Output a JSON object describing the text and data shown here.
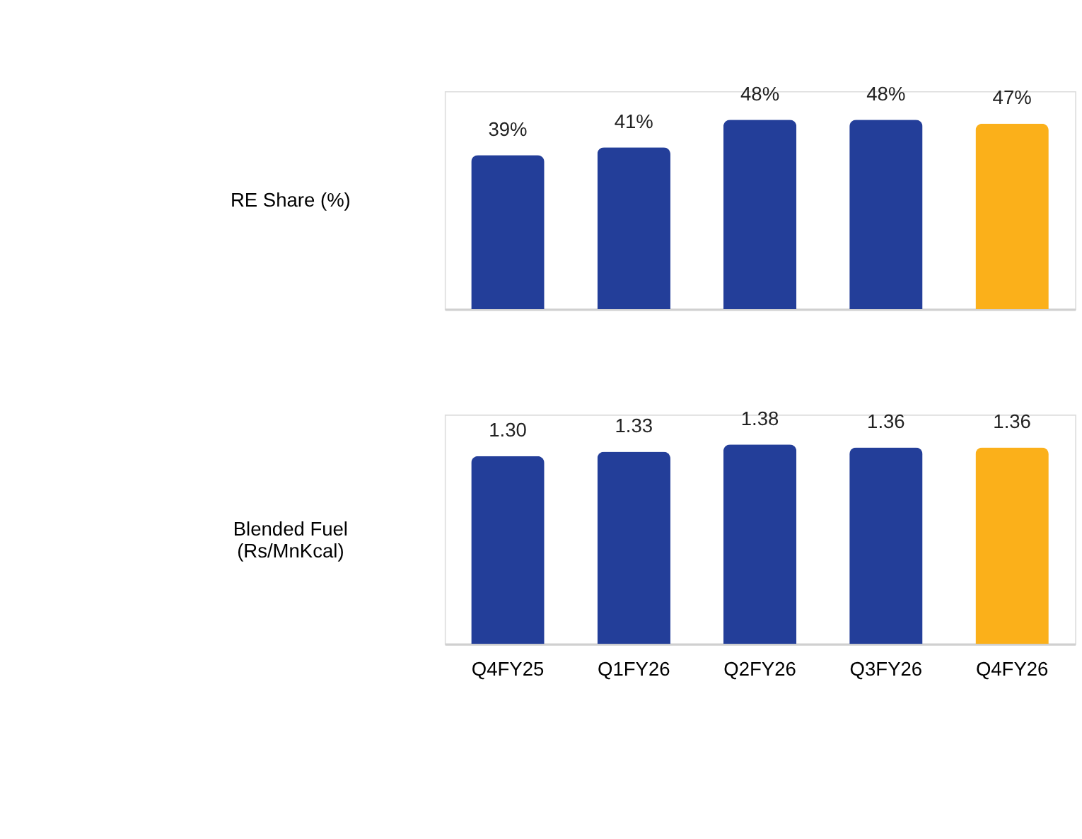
{
  "chart_data": [
    {
      "type": "bar",
      "ylabel": "RE Share (%)",
      "values": [
        39,
        41,
        48,
        48,
        47
      ],
      "value_labels": [
        "39%",
        "41%",
        "48%",
        "48%",
        "47%"
      ],
      "colors": [
        "#233e99",
        "#233e99",
        "#233e99",
        "#233e99",
        "#fbb01a"
      ],
      "tick_labels": false
    },
    {
      "type": "bar",
      "ylabel": "Blended Fuel (Rs/MnKcal)",
      "categories": [
        "Q4FY25",
        "Q1FY26",
        "Q2FY26",
        "Q3FY26",
        "Q4FY26"
      ],
      "values": [
        1.3,
        1.33,
        1.38,
        1.36,
        1.36
      ],
      "value_labels": [
        "1.30",
        "1.33",
        "1.38",
        "1.36",
        "1.36"
      ],
      "colors": [
        "#233e99",
        "#233e99",
        "#233e99",
        "#233e99",
        "#fbb01a"
      ],
      "tick_labels": "x"
    }
  ]
}
